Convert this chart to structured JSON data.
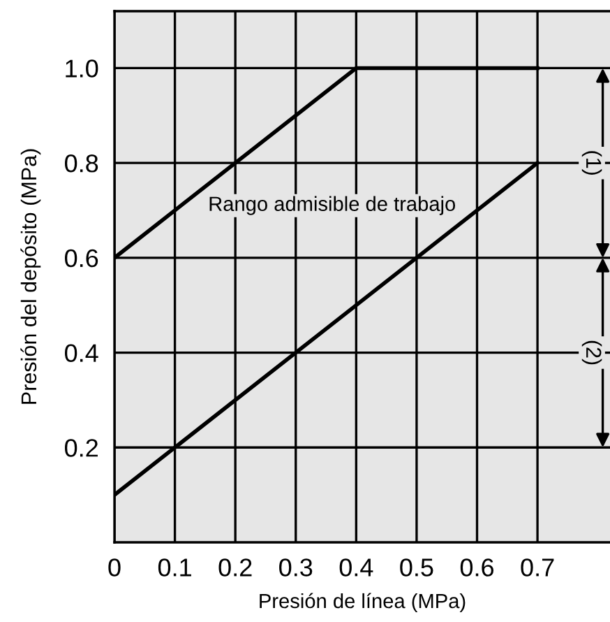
{
  "chart_data": {
    "type": "line",
    "xlabel": "Presión de línea (MPa)",
    "ylabel": "Presión del depósito (MPa)",
    "series": [
      {
        "color": "#000000",
        "x": [
          0,
          0.4,
          0.7
        ],
        "values": [
          0.6,
          1.0,
          1.0
        ]
      },
      {
        "color": "#000000",
        "x": [
          0,
          0.7
        ],
        "values": [
          0.1,
          0.8
        ]
      }
    ],
    "xlim": [
      0,
      0.82
    ],
    "ylim": [
      0,
      1.12
    ],
    "xticks": [
      0,
      0.1,
      0.2,
      0.3,
      0.4,
      0.5,
      0.6,
      0.7
    ],
    "yticks": [
      {
        "value": 0.2,
        "label": "0.2"
      },
      {
        "value": 0.4,
        "label": "0.4"
      },
      {
        "value": 0.6,
        "label": "0.6"
      },
      {
        "value": 0.8,
        "label": "0.8"
      },
      {
        "value": 1.0,
        "label": "1.0"
      }
    ],
    "annotations": [
      "Rango admisible de trabajo",
      "(1)",
      "(2)"
    ],
    "grid": true,
    "marker": "none",
    "line_style": "solid",
    "legend": false
  }
}
